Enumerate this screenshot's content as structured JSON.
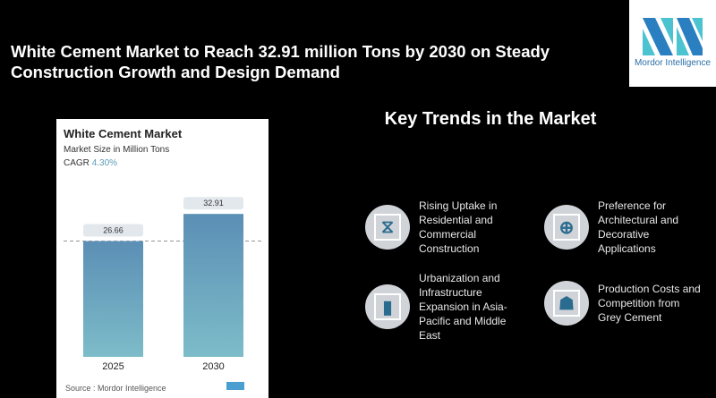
{
  "title": "White Cement Market to Reach 32.91 million Tons by 2030 on Steady Construction Growth and Design Demand",
  "logo": {
    "text": "Mordor Intelligence"
  },
  "card": {
    "title": "White Cement Market",
    "subtitle": "Market Size in Million Tons",
    "cagr_label": "CAGR",
    "cagr_value": "4.30%",
    "source": "Source :  Mordor Intelligence"
  },
  "chart_data": {
    "type": "bar",
    "title": "White Cement Market",
    "ylabel": "Market Size in Million Tons",
    "categories": [
      "2025",
      "2030"
    ],
    "values": [
      26.66,
      32.91
    ],
    "value_labels": [
      "26.66",
      "32.91"
    ],
    "ylim": [
      0,
      38
    ],
    "grid": false,
    "reference_line": 26.66,
    "bar_color_top": "#5b8fb5",
    "bar_color_bottom": "#7dbcc9"
  },
  "key_trends": {
    "heading": "Key Trends in the Market",
    "items": [
      {
        "icon": "dna-icon",
        "text": "Rising Uptake in Residential and Commercial Construction"
      },
      {
        "icon": "medical-cross-icon",
        "text": "Preference for Architectural and Decorative Applications"
      },
      {
        "icon": "pill-bottle-icon",
        "text": "Urbanization and Infrastructure Expansion in Asia-Pacific and Middle East"
      },
      {
        "icon": "doctor-icon",
        "text": "Production Costs and Competition from Grey Cement"
      }
    ]
  }
}
